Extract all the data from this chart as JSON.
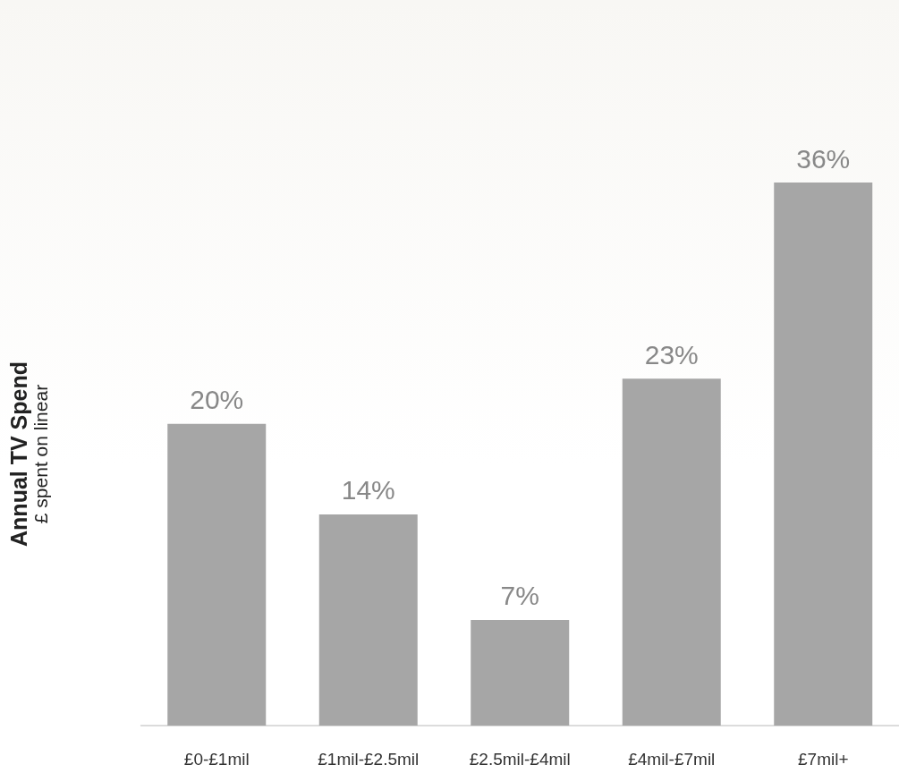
{
  "chart_data": {
    "type": "bar",
    "ylabel": "Annual TV Spend\n£ spent on linear",
    "categories": [
      "£0-£1mil",
      "£1mil-£2.5mil",
      "£2.5mil-£4mil",
      "£4mil-£7mil",
      "£7mil+"
    ],
    "values": [
      20,
      14,
      7,
      23,
      36
    ],
    "value_labels": [
      "20%",
      "14%",
      "7%",
      "23%",
      "36%"
    ],
    "color": "#a6a6a6",
    "grid": false
  }
}
